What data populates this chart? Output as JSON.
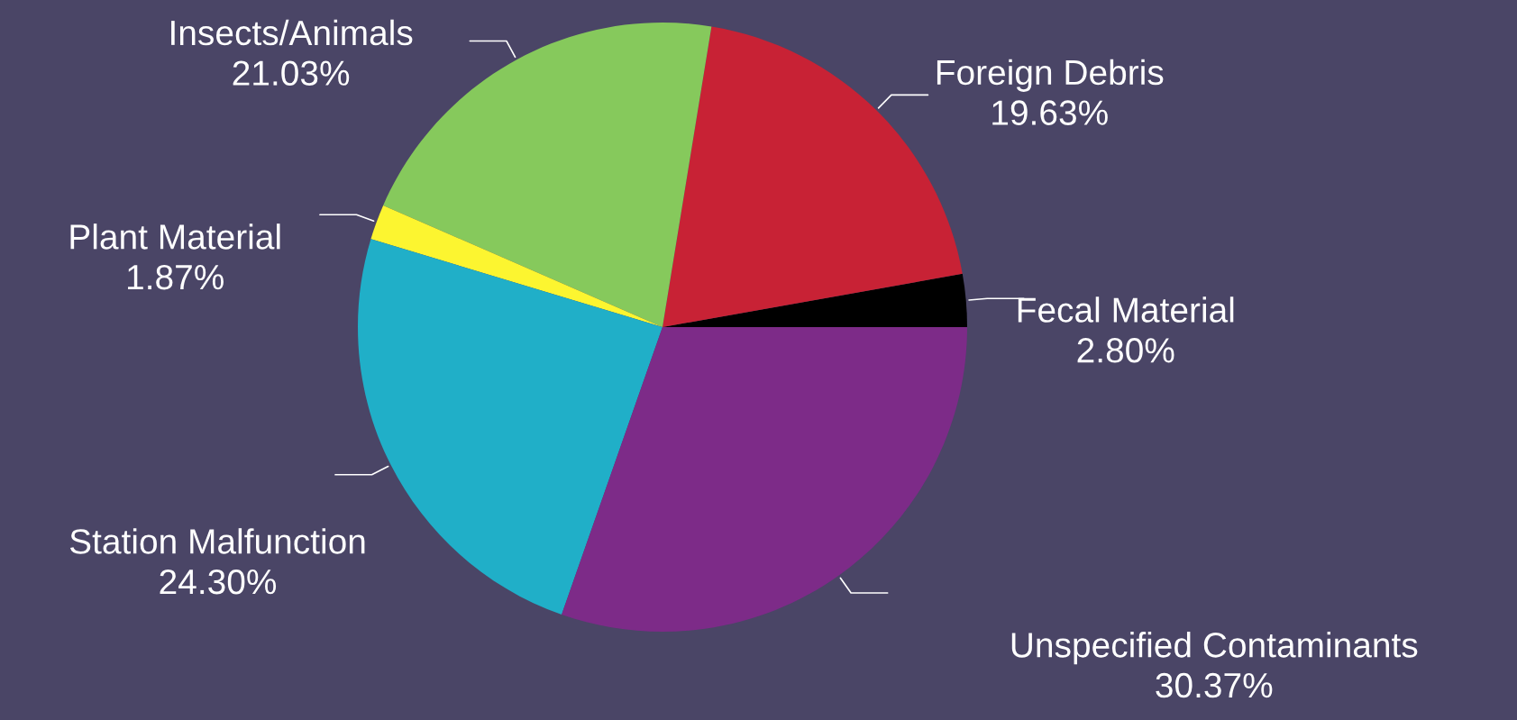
{
  "chart_data": {
    "type": "pie",
    "categories": [
      "Fecal Material",
      "Foreign Debris",
      "Insects/Animals",
      "Plant Material",
      "Station Malfunction",
      "Unspecified Contaminants"
    ],
    "values": [
      2.8,
      19.63,
      21.03,
      1.87,
      24.3,
      30.37
    ],
    "value_labels": [
      "2.80%",
      "19.63%",
      "21.03%",
      "1.87%",
      "24.30%",
      "30.37%"
    ],
    "colors": [
      "#000000",
      "#c82235",
      "#86c95c",
      "#fcf530",
      "#20afc8",
      "#7d2b88"
    ],
    "legend": false
  }
}
